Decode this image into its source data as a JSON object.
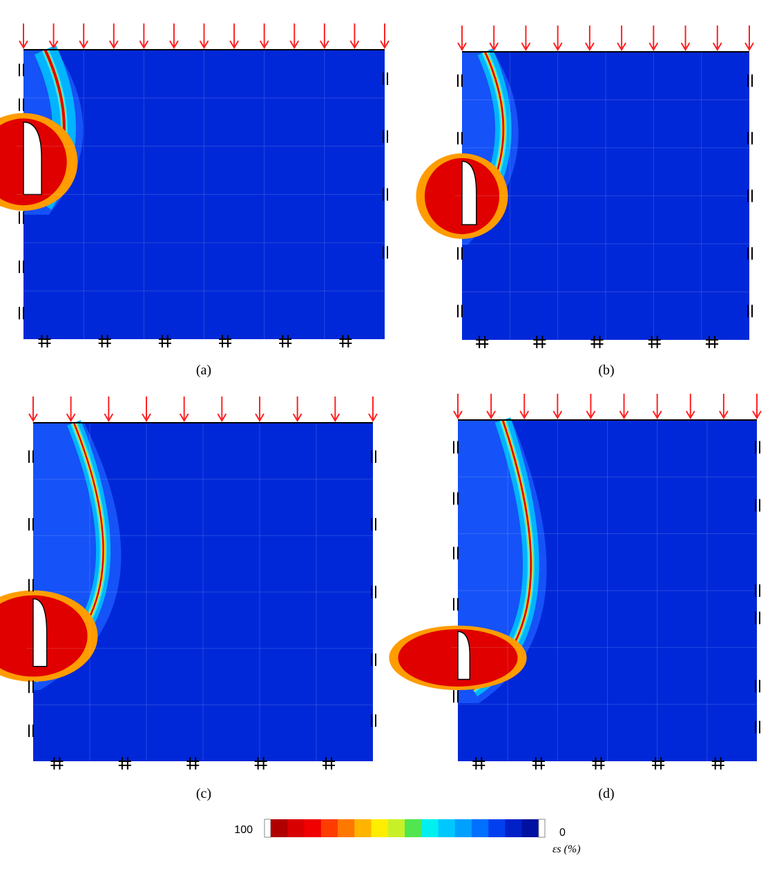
{
  "panels": [
    {
      "label": "(a)"
    },
    {
      "label": "(b)"
    },
    {
      "label": "(c)"
    },
    {
      "label": "(d)"
    }
  ],
  "colorbar": {
    "max": "100",
    "min": "0",
    "label": "εs (%)",
    "colors": [
      "#b00000",
      "#d80000",
      "#f00000",
      "#ff3c00",
      "#ff7800",
      "#ffb400",
      "#ffee00",
      "#c8f028",
      "#50e650",
      "#00f0f0",
      "#00c8ff",
      "#00a0ff",
      "#0070ff",
      "#0040f0",
      "#0020c8",
      "#0010a0"
    ]
  }
}
